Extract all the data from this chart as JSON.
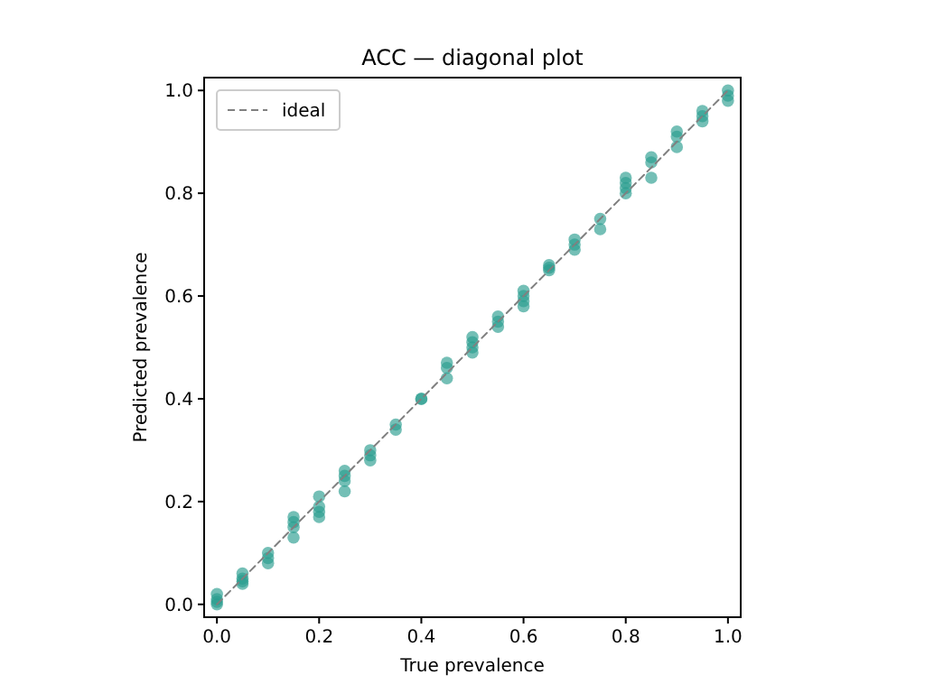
{
  "chart_data": {
    "type": "scatter",
    "title": "ACC — diagonal plot",
    "xlabel": "True prevalence",
    "ylabel": "Predicted prevalence",
    "xlim": [
      -0.025,
      1.025
    ],
    "ylim": [
      -0.025,
      1.025
    ],
    "xticks": [
      {
        "value": 0,
        "label": "0.0"
      },
      {
        "value": 0.2,
        "label": "0.2"
      },
      {
        "value": 0.4,
        "label": "0.4"
      },
      {
        "value": 0.6,
        "label": "0.6"
      },
      {
        "value": 0.8,
        "label": "0.8"
      },
      {
        "value": 1,
        "label": "1.0"
      }
    ],
    "yticks": [
      {
        "value": 0,
        "label": "0.0"
      },
      {
        "value": 0.2,
        "label": "0.2"
      },
      {
        "value": 0.4,
        "label": "0.4"
      },
      {
        "value": 0.6,
        "label": "0.6"
      },
      {
        "value": 0.8,
        "label": "0.8"
      },
      {
        "value": 1,
        "label": "1.0"
      }
    ],
    "grid": false,
    "legend": "top left",
    "series": [
      {
        "marker": "circle",
        "color": "#2a9d8f",
        "x": [
          0,
          0,
          0,
          0,
          0.05,
          0.05,
          0.05,
          0.05,
          0.1,
          0.1,
          0.1,
          0.15,
          0.15,
          0.15,
          0.15,
          0.2,
          0.2,
          0.2,
          0.2,
          0.25,
          0.25,
          0.25,
          0.25,
          0.3,
          0.3,
          0.3,
          0.35,
          0.35,
          0.4,
          0.4,
          0.45,
          0.45,
          0.45,
          0.5,
          0.5,
          0.5,
          0.5,
          0.55,
          0.55,
          0.55,
          0.6,
          0.6,
          0.6,
          0.6,
          0.65,
          0.65,
          0.65,
          0.7,
          0.7,
          0.7,
          0.75,
          0.75,
          0.8,
          0.8,
          0.8,
          0.8,
          0.85,
          0.85,
          0.85,
          0.9,
          0.9,
          0.9,
          0.95,
          0.95,
          0.95,
          1,
          1,
          1
        ],
        "values": [
          0,
          0.01,
          0.02,
          0.005,
          0.04,
          0.05,
          0.06,
          0.045,
          0.08,
          0.09,
          0.1,
          0.13,
          0.15,
          0.16,
          0.17,
          0.17,
          0.18,
          0.19,
          0.21,
          0.22,
          0.24,
          0.25,
          0.26,
          0.28,
          0.29,
          0.3,
          0.34,
          0.35,
          0.4,
          0.4,
          0.44,
          0.46,
          0.47,
          0.49,
          0.5,
          0.51,
          0.52,
          0.54,
          0.55,
          0.56,
          0.58,
          0.59,
          0.6,
          0.61,
          0.65,
          0.655,
          0.66,
          0.69,
          0.7,
          0.71,
          0.73,
          0.75,
          0.8,
          0.81,
          0.82,
          0.83,
          0.83,
          0.86,
          0.87,
          0.89,
          0.91,
          0.92,
          0.94,
          0.95,
          0.96,
          0.98,
          0.99,
          1
        ]
      },
      {
        "type": "line",
        "name": "ideal",
        "color": "#808080",
        "line_style": "dashed",
        "marker": "none",
        "x": [
          0,
          1
        ],
        "values": [
          0,
          1
        ]
      }
    ]
  }
}
